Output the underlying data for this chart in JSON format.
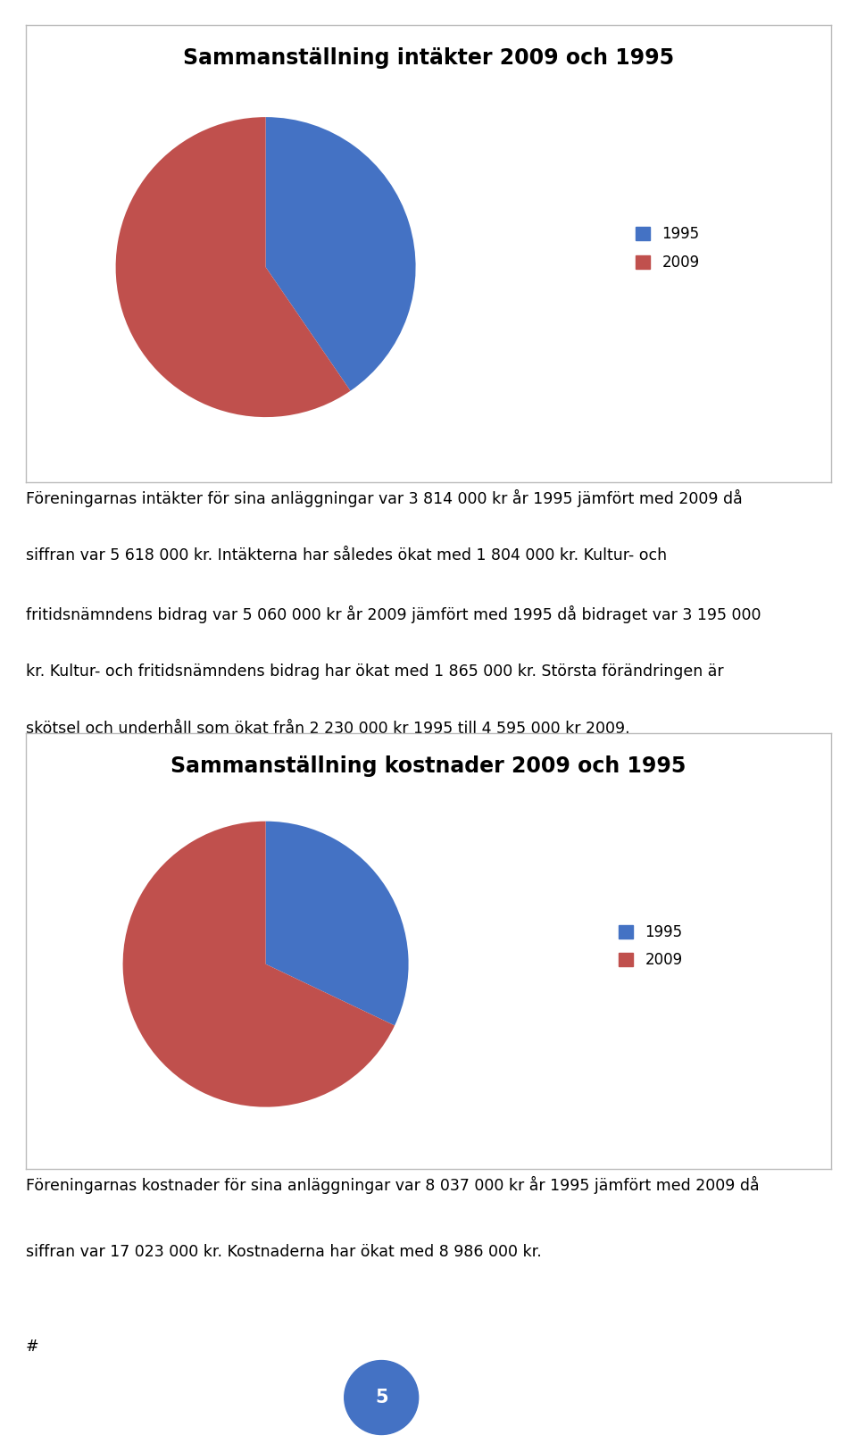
{
  "chart1_title": "Sammanställning intäkter 2009 och 1995",
  "chart1_values": [
    3814,
    5618
  ],
  "chart1_labels": [
    "1995",
    "2009"
  ],
  "chart1_colors": [
    "#4472C4",
    "#C0504D"
  ],
  "chart2_title": "Sammanställning kostnader 2009 och 1995",
  "chart2_values": [
    8037,
    17023
  ],
  "chart2_labels": [
    "1995",
    "2009"
  ],
  "chart2_colors": [
    "#4472C4",
    "#C0504D"
  ],
  "text1_line1": "Föreningarnas intäkter för sina anläggningar var 3 814 000 kr år 1995 jämfört med 2009 då",
  "text1_line2": "siffran var 5 618 000 kr. Intäkterna har således ökat med 1 804 000 kr. Kultur- och",
  "text1_line3": "fritidsnämndens bidrag var 5 060 000 kr år 2009 jämfört med 1995 då bidraget var 3 195 000",
  "text1_line4": "kr. Kultur- och fritidsnämndens bidrag har ökat med 1 865 000 kr. Största förändringen är",
  "text1_line5": "skötsel och underhåll som ökat från 2 230 000 kr 1995 till 4 595 000 kr 2009.",
  "text2_line1": "Föreningarnas kostnader för sina anläggningar var 8 037 000 kr år 1995 jämfört med 2009 då",
  "text2_line2": "siffran var 17 023 000 kr. Kostnaderna har ökat med 8 986 000 kr.",
  "page_number": "5",
  "hash_text": "#",
  "background_color": "#FFFFFF",
  "box_color": "#FFFFFF",
  "box_border_color": "#BBBBBB",
  "legend_color_1995": "#4472C4",
  "legend_color_2009": "#C0504D",
  "page_circle_color": "#4472C4",
  "title_fontsize": 17,
  "text_fontsize": 12.5,
  "legend_fontsize": 12
}
